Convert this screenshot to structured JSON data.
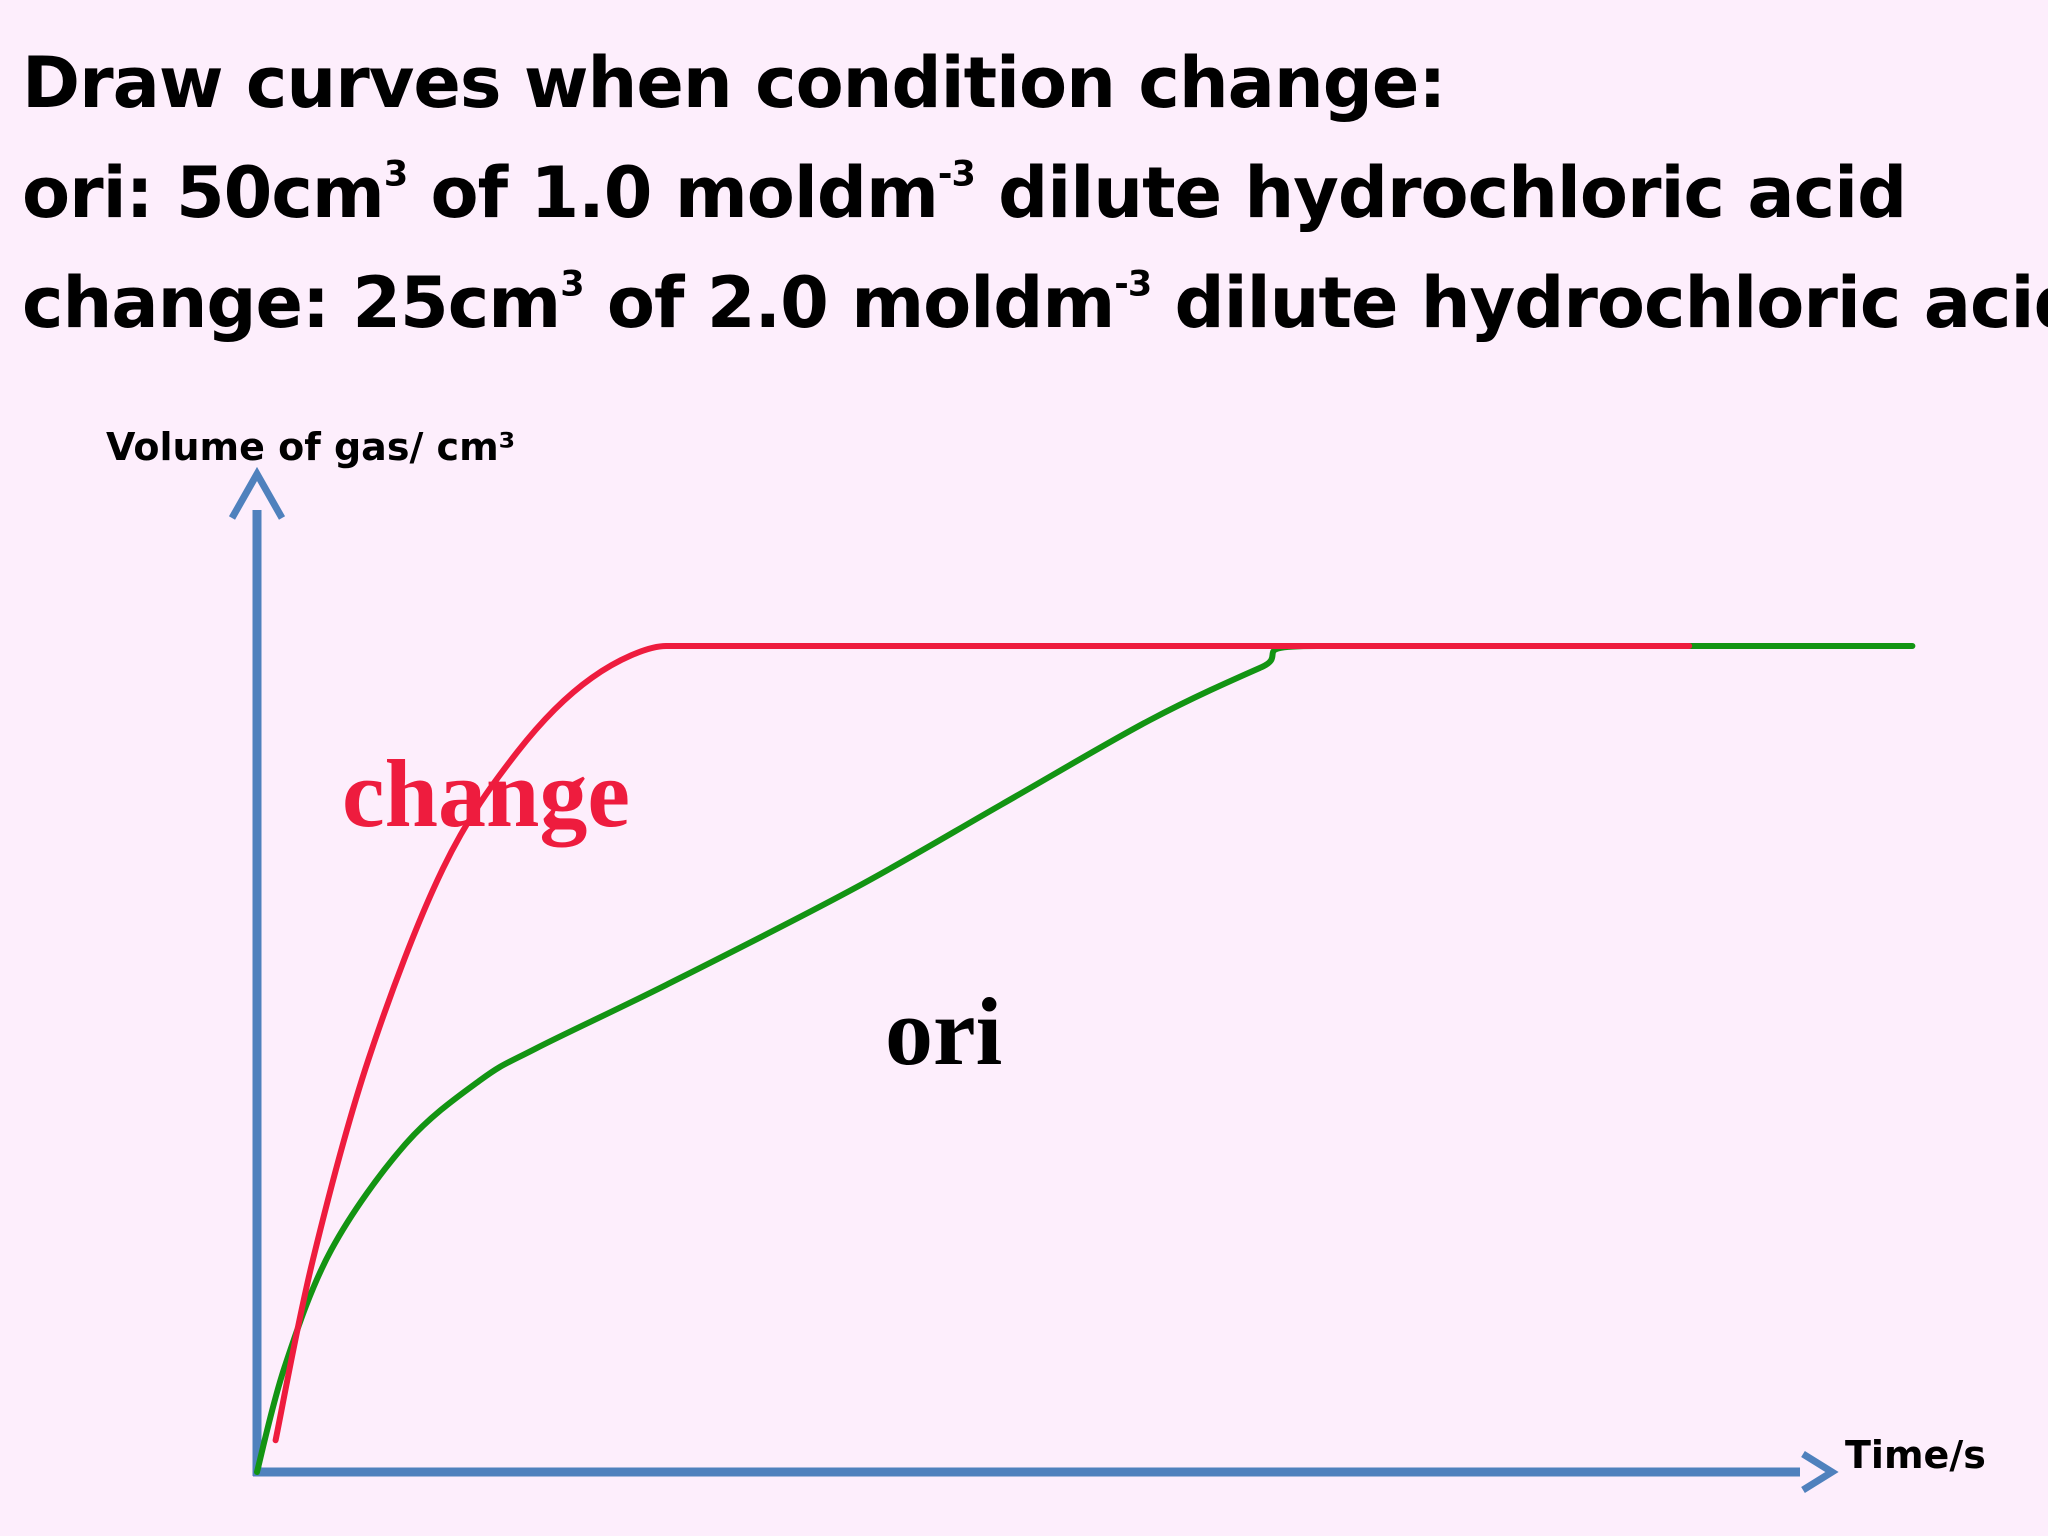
{
  "heading": {
    "line1": "Draw curves when condition change:",
    "line2": {
      "prefix": "ori: 50cm",
      "sup1": "3",
      "middle": " of 1.0 moldm",
      "sup2": "-3",
      "suffix": " dilute hydrochloric acid"
    },
    "line3": {
      "prefix": "change: 25cm",
      "sup1": "3",
      "middle": " of 2.0 moldm",
      "sup2": "-3",
      "suffix": " dilute hydrochloric acid"
    }
  },
  "colors": {
    "background": "#fdeefc",
    "axis": "#4f81bd",
    "change": "#ee1c3e",
    "ori": "#139413"
  },
  "chart_data": {
    "type": "line",
    "title": "",
    "xlabel": "Time/s",
    "ylabel": "Volume of gas/ cm³",
    "xlim": [
      0,
      10
    ],
    "ylim": [
      0,
      10
    ],
    "grid": false,
    "legend": "none",
    "series": [
      {
        "name": "change",
        "color": "#ee1c3e",
        "points": [
          [
            0.1,
            0.3
          ],
          [
            0.3,
            2.0
          ],
          [
            0.6,
            3.9
          ],
          [
            1.0,
            5.7
          ],
          [
            1.4,
            6.8
          ],
          [
            1.8,
            7.5
          ],
          [
            2.2,
            7.8
          ],
          [
            2.4,
            7.8
          ],
          [
            5.0,
            7.8
          ],
          [
            7.7,
            7.8
          ]
        ]
      },
      {
        "name": "ori",
        "color": "#139413",
        "points": [
          [
            0.0,
            0.0
          ],
          [
            0.15,
            1.0
          ],
          [
            0.4,
            2.1
          ],
          [
            0.8,
            3.1
          ],
          [
            1.2,
            3.7
          ],
          [
            1.5,
            4.0
          ],
          [
            2.2,
            4.6
          ],
          [
            3.2,
            5.5
          ],
          [
            4.0,
            6.3
          ],
          [
            4.8,
            7.1
          ],
          [
            5.4,
            7.6
          ],
          [
            5.7,
            7.8
          ],
          [
            7.7,
            7.8
          ],
          [
            8.9,
            7.8
          ]
        ]
      }
    ]
  }
}
